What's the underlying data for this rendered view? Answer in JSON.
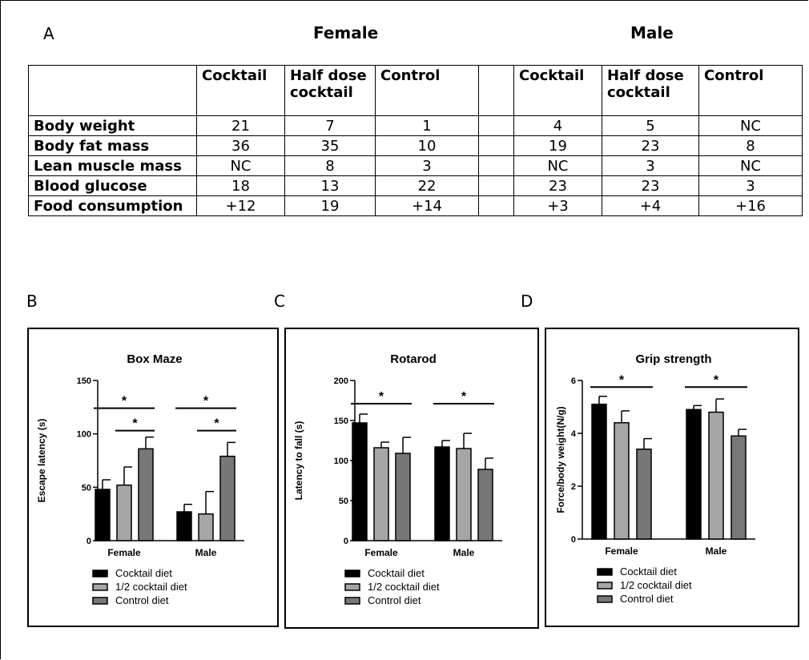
{
  "panels": {
    "a": "A",
    "b": "B",
    "c": "C",
    "d": "D"
  },
  "table": {
    "sex_headers": [
      "Female",
      "Male"
    ],
    "columns": [
      "",
      "Cocktail",
      "Half dose cocktail",
      "Control",
      "",
      "Cocktail",
      "Half dose cocktail",
      "Control"
    ],
    "rows": [
      {
        "label": "Body weight",
        "female": [
          "21",
          "7",
          "1"
        ],
        "male": [
          "4",
          "5",
          "NC"
        ]
      },
      {
        "label": "Body fat mass",
        "female": [
          "36",
          "35",
          "10"
        ],
        "male": [
          "19",
          "23",
          "8"
        ]
      },
      {
        "label": "Lean muscle mass",
        "female": [
          "NC",
          "8",
          "3"
        ],
        "male": [
          "NC",
          "3",
          "NC"
        ]
      },
      {
        "label": "Blood glucose",
        "female": [
          "18",
          "13",
          "22"
        ],
        "male": [
          "23",
          "23",
          "3"
        ]
      },
      {
        "label": "Food consumption",
        "female": [
          "+12",
          "19",
          "+14"
        ],
        "male": [
          "+3",
          "+4",
          "+16"
        ]
      }
    ]
  },
  "colors": {
    "cocktail": "#000000",
    "half": "#a6a6a6",
    "control": "#777777"
  },
  "chart_data": [
    {
      "type": "bar",
      "title": "Box Maze",
      "ylabel": "Escape latency (s)",
      "xlabel": "",
      "categories": [
        "Female",
        "Male"
      ],
      "ylim": [
        0,
        150
      ],
      "yticks": [
        0,
        50,
        100,
        150
      ],
      "series": [
        {
          "name": "Cocktail diet",
          "values": [
            48,
            27
          ],
          "errors": [
            9,
            7
          ]
        },
        {
          "name": "1/2 cocktail diet",
          "values": [
            52,
            25
          ],
          "errors": [
            17,
            21
          ]
        },
        {
          "name": "Control diet",
          "values": [
            86,
            79
          ],
          "errors": [
            11,
            13
          ]
        }
      ],
      "significance": [
        {
          "category": 0,
          "from": 0,
          "to": 2,
          "y": 124,
          "label": "*"
        },
        {
          "category": 0,
          "from": 1,
          "to": 2,
          "y": 103,
          "label": "*"
        },
        {
          "category": 1,
          "from": 0,
          "to": 2,
          "y": 124,
          "label": "*"
        },
        {
          "category": 1,
          "from": 1,
          "to": 2,
          "y": 103,
          "label": "*"
        }
      ],
      "legend": [
        "Cocktail diet",
        "1/2 cocktail diet",
        "Control diet"
      ],
      "legend_position": "bottom"
    },
    {
      "type": "bar",
      "title": "Rotarod",
      "ylabel": "Latency to fall (s)",
      "xlabel": "",
      "categories": [
        "Female",
        "Male"
      ],
      "ylim": [
        0,
        200
      ],
      "yticks": [
        0,
        50,
        100,
        150,
        200
      ],
      "series": [
        {
          "name": "Cocktail diet",
          "values": [
            147,
            117
          ],
          "errors": [
            11,
            8
          ]
        },
        {
          "name": "1/2 cocktail diet",
          "values": [
            116,
            115
          ],
          "errors": [
            7,
            19
          ]
        },
        {
          "name": "Control diet",
          "values": [
            109,
            89
          ],
          "errors": [
            20,
            14
          ]
        }
      ],
      "significance": [
        {
          "category": 0,
          "from": 0,
          "to": 2,
          "y": 171,
          "label": "*"
        },
        {
          "category": 1,
          "from": 0,
          "to": 2,
          "y": 171,
          "label": "*"
        }
      ],
      "legend": [
        "Cocktail diet",
        "1/2 cocktail diet",
        "Control diet"
      ],
      "legend_position": "bottom"
    },
    {
      "type": "bar",
      "title": "Grip strength",
      "ylabel": "Force/body weight(N/g)",
      "xlabel": "",
      "categories": [
        "Female",
        "Male"
      ],
      "ylim": [
        0,
        6
      ],
      "yticks": [
        0,
        2,
        4,
        6
      ],
      "series": [
        {
          "name": "Cocktail diet",
          "values": [
            5.1,
            4.9
          ],
          "errors": [
            0.3,
            0.15
          ]
        },
        {
          "name": "1/2 cocktail diet",
          "values": [
            4.4,
            4.8
          ],
          "errors": [
            0.45,
            0.5
          ]
        },
        {
          "name": "Control diet",
          "values": [
            3.4,
            3.9
          ],
          "errors": [
            0.4,
            0.25
          ]
        }
      ],
      "significance": [
        {
          "category": 0,
          "from": 0,
          "to": 2,
          "y": 5.75,
          "label": "*"
        },
        {
          "category": 1,
          "from": 0,
          "to": 2,
          "y": 5.75,
          "label": "*"
        }
      ],
      "legend": [
        "Cocktail diet",
        "1/2 cocktail diet",
        "Control diet"
      ],
      "legend_position": "bottom"
    }
  ]
}
